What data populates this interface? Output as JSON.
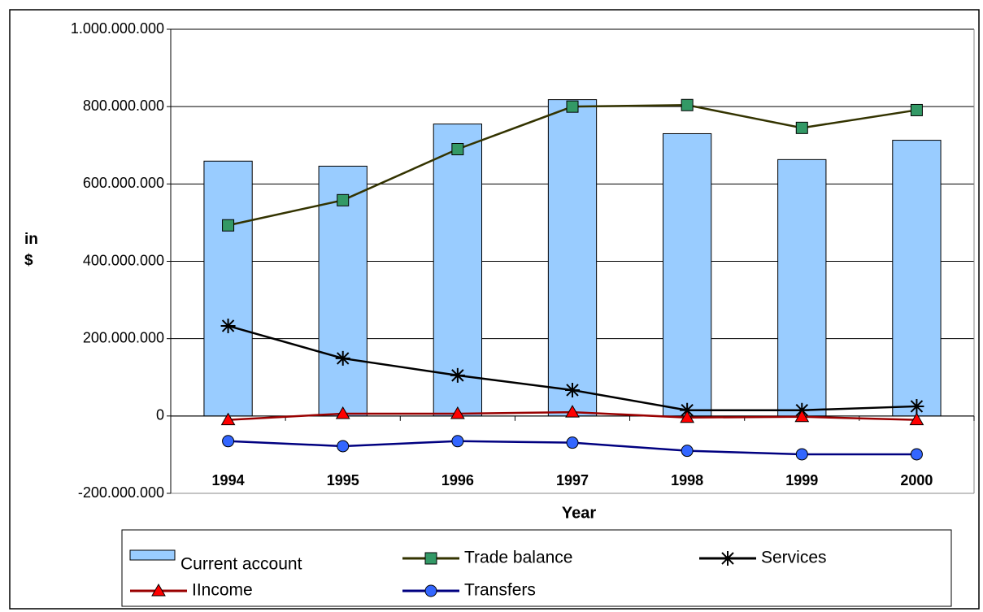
{
  "chart_data": {
    "type": "bar",
    "x_label": "Year",
    "y_label": "in $",
    "categories": [
      "1994",
      "1995",
      "1996",
      "1997",
      "1998",
      "1999",
      "2000"
    ],
    "ylim": [
      -200000000,
      1000000000
    ],
    "yticks": [
      {
        "value": -200000000,
        "label": "-200.000.000"
      },
      {
        "value": 0,
        "label": "0"
      },
      {
        "value": 200000000,
        "label": "200.000.000"
      },
      {
        "value": 400000000,
        "label": "400.000.000"
      },
      {
        "value": 600000000,
        "label": "600.000.000"
      },
      {
        "value": 800000000,
        "label": "800.000.000"
      },
      {
        "value": 1000000000,
        "label": "1.000.000.000"
      }
    ],
    "grid": true,
    "legend": "bottom",
    "series": [
      {
        "name": "Current account",
        "type": "bar",
        "color": "#99ccff",
        "values": [
          659000000,
          646000000,
          755000000,
          818000000,
          730000000,
          663000000,
          713000000
        ]
      },
      {
        "name": "Trade balance",
        "type": "line",
        "marker": "square",
        "color": "#333300",
        "marker_color": "#339966",
        "values": [
          493000000,
          558000000,
          690000000,
          800000000,
          804000000,
          745000000,
          791000000
        ]
      },
      {
        "name": "Services",
        "type": "line",
        "marker": "star",
        "color": "#000000",
        "marker_color": "#000000",
        "values": [
          233000000,
          149000000,
          105000000,
          67000000,
          15000000,
          15000000,
          25000000
        ]
      },
      {
        "name": "IIncome",
        "type": "line",
        "marker": "triangle",
        "color": "#990000",
        "marker_color": "#ff0000",
        "values": [
          -10000000,
          6000000,
          6000000,
          10000000,
          -4000000,
          -2000000,
          -10000000
        ]
      },
      {
        "name": "Transfers",
        "type": "line",
        "marker": "circle",
        "color": "#000080",
        "marker_color": "#3366ff",
        "values": [
          -65000000,
          -78000000,
          -65000000,
          -69000000,
          -90000000,
          -99000000,
          -99000000
        ]
      }
    ]
  }
}
